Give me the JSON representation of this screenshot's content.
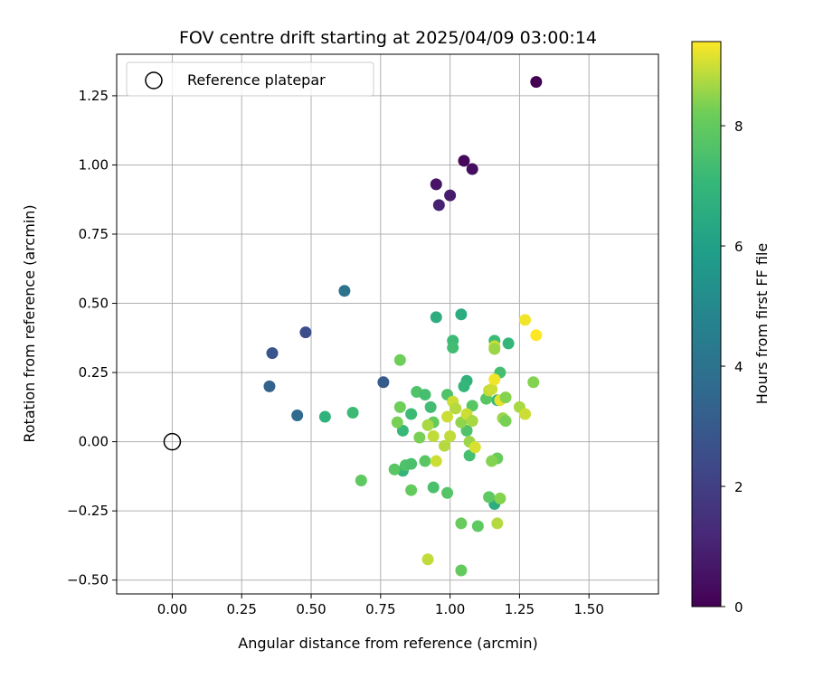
{
  "chart_data": {
    "type": "scatter",
    "title": "FOV centre drift starting at 2025/04/09 03:00:14",
    "xlabel": "Angular distance from reference (arcmin)",
    "ylabel": "Rotation from reference (arcmin)",
    "xlim": [
      -0.2,
      1.75
    ],
    "ylim": [
      -0.55,
      1.4
    ],
    "xticks": [
      0.0,
      0.25,
      0.5,
      0.75,
      1.0,
      1.25,
      1.5
    ],
    "xtick_labels": [
      "0.00",
      "0.25",
      "0.50",
      "0.75",
      "1.00",
      "1.25",
      "1.50"
    ],
    "yticks": [
      -0.5,
      -0.25,
      0.0,
      0.25,
      0.5,
      0.75,
      1.0,
      1.25
    ],
    "ytick_labels": [
      "−0.50",
      "−0.25",
      "0.00",
      "0.25",
      "0.50",
      "0.75",
      "1.00",
      "1.25"
    ],
    "grid": true,
    "legend": {
      "placement": "upper-left",
      "entries": [
        "Reference platepar"
      ]
    },
    "reference_point": {
      "x": 0.0,
      "y": 0.0
    },
    "colorbar": {
      "label": "Hours from first FF file",
      "colormap": "viridis",
      "range": [
        0,
        9.4
      ],
      "ticks": [
        0,
        2,
        4,
        6,
        8
      ],
      "tick_labels": [
        "0",
        "2",
        "4",
        "6",
        "8"
      ]
    },
    "points": [
      {
        "x": 1.31,
        "y": 1.3,
        "c": 0.0
      },
      {
        "x": 1.05,
        "y": 1.015,
        "c": 0.2
      },
      {
        "x": 1.08,
        "y": 0.985,
        "c": 0.4
      },
      {
        "x": 0.95,
        "y": 0.93,
        "c": 0.6
      },
      {
        "x": 1.0,
        "y": 0.89,
        "c": 0.8
      },
      {
        "x": 0.96,
        "y": 0.855,
        "c": 1.0
      },
      {
        "x": 0.48,
        "y": 0.395,
        "c": 2.5
      },
      {
        "x": 0.36,
        "y": 0.32,
        "c": 2.8
      },
      {
        "x": 0.76,
        "y": 0.215,
        "c": 3.0
      },
      {
        "x": 0.35,
        "y": 0.2,
        "c": 3.3
      },
      {
        "x": 0.45,
        "y": 0.095,
        "c": 3.6
      },
      {
        "x": 0.62,
        "y": 0.545,
        "c": 4.0
      },
      {
        "x": 0.95,
        "y": 0.45,
        "c": 6.6
      },
      {
        "x": 1.04,
        "y": 0.46,
        "c": 6.6
      },
      {
        "x": 1.01,
        "y": 0.365,
        "c": 7.2
      },
      {
        "x": 1.01,
        "y": 0.34,
        "c": 7.3
      },
      {
        "x": 1.16,
        "y": 0.365,
        "c": 7.2
      },
      {
        "x": 1.21,
        "y": 0.355,
        "c": 7.0
      },
      {
        "x": 1.18,
        "y": 0.25,
        "c": 7.4
      },
      {
        "x": 1.06,
        "y": 0.22,
        "c": 6.8
      },
      {
        "x": 1.05,
        "y": 0.2,
        "c": 7.0
      },
      {
        "x": 1.17,
        "y": 0.15,
        "c": 7.1
      },
      {
        "x": 0.55,
        "y": 0.09,
        "c": 6.8
      },
      {
        "x": 0.65,
        "y": 0.105,
        "c": 7.2
      },
      {
        "x": 0.83,
        "y": 0.04,
        "c": 7.1
      },
      {
        "x": 0.86,
        "y": 0.1,
        "c": 7.2
      },
      {
        "x": 0.88,
        "y": 0.18,
        "c": 7.6
      },
      {
        "x": 0.93,
        "y": 0.125,
        "c": 7.3
      },
      {
        "x": 0.91,
        "y": 0.17,
        "c": 7.4
      },
      {
        "x": 0.99,
        "y": 0.17,
        "c": 7.6
      },
      {
        "x": 1.06,
        "y": 0.04,
        "c": 7.6
      },
      {
        "x": 1.08,
        "y": 0.13,
        "c": 7.8
      },
      {
        "x": 1.13,
        "y": 0.155,
        "c": 7.8
      },
      {
        "x": 1.07,
        "y": -0.05,
        "c": 7.4
      },
      {
        "x": 0.83,
        "y": -0.105,
        "c": 6.9
      },
      {
        "x": 0.8,
        "y": -0.1,
        "c": 7.8
      },
      {
        "x": 0.84,
        "y": -0.085,
        "c": 7.6
      },
      {
        "x": 0.86,
        "y": -0.08,
        "c": 7.5
      },
      {
        "x": 0.91,
        "y": -0.07,
        "c": 7.8
      },
      {
        "x": 0.68,
        "y": -0.14,
        "c": 7.9
      },
      {
        "x": 0.86,
        "y": -0.175,
        "c": 8.0
      },
      {
        "x": 0.94,
        "y": -0.165,
        "c": 7.5
      },
      {
        "x": 0.99,
        "y": -0.185,
        "c": 7.7
      },
      {
        "x": 1.16,
        "y": -0.225,
        "c": 6.6
      },
      {
        "x": 1.14,
        "y": -0.2,
        "c": 7.9
      },
      {
        "x": 1.18,
        "y": -0.205,
        "c": 8.4
      },
      {
        "x": 1.04,
        "y": -0.295,
        "c": 8.1
      },
      {
        "x": 1.1,
        "y": -0.305,
        "c": 7.9
      },
      {
        "x": 1.04,
        "y": -0.465,
        "c": 8.0
      },
      {
        "x": 1.17,
        "y": -0.295,
        "c": 8.8
      },
      {
        "x": 0.92,
        "y": -0.425,
        "c": 8.9
      },
      {
        "x": 1.17,
        "y": -0.06,
        "c": 8.1
      },
      {
        "x": 1.15,
        "y": -0.07,
        "c": 8.4
      },
      {
        "x": 0.82,
        "y": 0.295,
        "c": 8.2
      },
      {
        "x": 0.82,
        "y": 0.125,
        "c": 8.2
      },
      {
        "x": 0.81,
        "y": 0.07,
        "c": 8.3
      },
      {
        "x": 0.89,
        "y": 0.015,
        "c": 8.3
      },
      {
        "x": 0.94,
        "y": 0.07,
        "c": 8.0
      },
      {
        "x": 0.92,
        "y": 0.06,
        "c": 8.7
      },
      {
        "x": 0.95,
        "y": -0.07,
        "c": 9.0
      },
      {
        "x": 0.94,
        "y": 0.02,
        "c": 8.9
      },
      {
        "x": 0.98,
        "y": -0.015,
        "c": 8.8
      },
      {
        "x": 0.99,
        "y": 0.09,
        "c": 9.0
      },
      {
        "x": 1.0,
        "y": 0.02,
        "c": 8.9
      },
      {
        "x": 1.01,
        "y": 0.145,
        "c": 9.0
      },
      {
        "x": 1.02,
        "y": 0.12,
        "c": 8.8
      },
      {
        "x": 1.04,
        "y": 0.07,
        "c": 8.5
      },
      {
        "x": 1.06,
        "y": 0.1,
        "c": 9.0
      },
      {
        "x": 1.07,
        "y": 0.0,
        "c": 8.6
      },
      {
        "x": 1.08,
        "y": 0.075,
        "c": 8.7
      },
      {
        "x": 1.09,
        "y": -0.02,
        "c": 9.1
      },
      {
        "x": 1.14,
        "y": 0.185,
        "c": 8.9
      },
      {
        "x": 1.15,
        "y": 0.19,
        "c": 9.0
      },
      {
        "x": 1.16,
        "y": 0.225,
        "c": 9.3
      },
      {
        "x": 1.16,
        "y": 0.345,
        "c": 9.0
      },
      {
        "x": 1.16,
        "y": 0.335,
        "c": 8.6
      },
      {
        "x": 1.18,
        "y": 0.15,
        "c": 9.2
      },
      {
        "x": 1.2,
        "y": 0.16,
        "c": 8.4
      },
      {
        "x": 1.19,
        "y": 0.085,
        "c": 8.6
      },
      {
        "x": 1.2,
        "y": 0.075,
        "c": 8.3
      },
      {
        "x": 1.25,
        "y": 0.125,
        "c": 8.7
      },
      {
        "x": 1.27,
        "y": 0.1,
        "c": 9.0
      },
      {
        "x": 1.27,
        "y": 0.44,
        "c": 9.3
      },
      {
        "x": 1.31,
        "y": 0.385,
        "c": 9.4
      },
      {
        "x": 1.3,
        "y": 0.215,
        "c": 8.4
      }
    ]
  }
}
